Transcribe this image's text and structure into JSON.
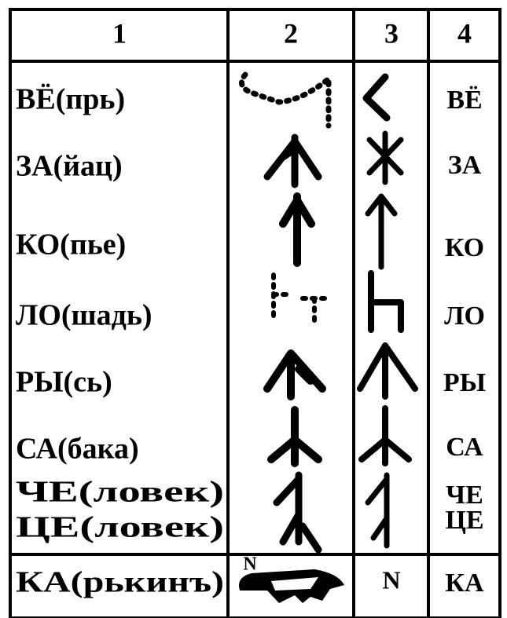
{
  "table": {
    "header": [
      "1",
      "2",
      "3",
      "4"
    ],
    "rows": [
      {
        "col1": [
          "ВЁ(прь)"
        ],
        "col4": [
          "ВЁ"
        ]
      },
      {
        "col1": [
          "ЗА(йац)"
        ],
        "col4": [
          "ЗА"
        ]
      },
      {
        "col1": [
          "КО(пье)"
        ],
        "col4": [
          "КО"
        ]
      },
      {
        "col1": [
          "ЛО(шадь)"
        ],
        "col4": [
          "ЛО"
        ]
      },
      {
        "col1": [
          "РЫ(сь)"
        ],
        "col4": [
          "РЫ"
        ]
      },
      {
        "col1": [
          "СА(бака)"
        ],
        "col4": [
          "СА"
        ]
      },
      {
        "col1": [
          "ЧЕ(ловек)",
          "ЦЕ(ловек)"
        ],
        "col4": [
          "ЧЕ",
          "ЦЕ"
        ]
      },
      {
        "col1": [
          "КА(рькинъ)"
        ],
        "col2": "N",
        "col3": "N",
        "col4": [
          "КА"
        ]
      }
    ]
  }
}
